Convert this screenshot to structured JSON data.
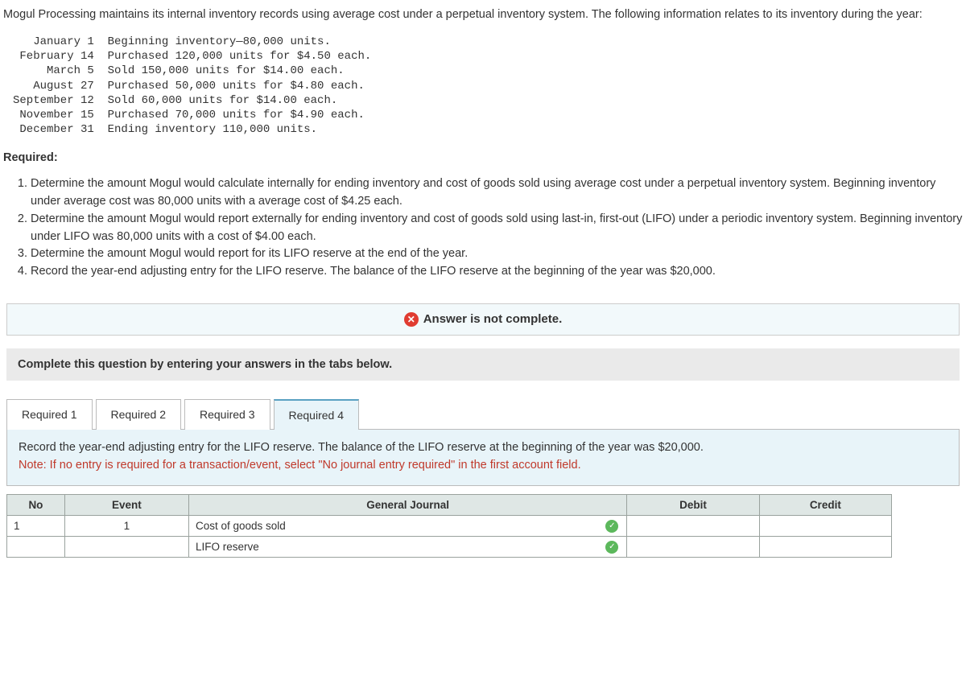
{
  "intro": "Mogul Processing maintains its internal inventory records using average cost under a perpetual inventory system. The following information relates to its inventory during the year:",
  "transactions": [
    {
      "date": "January 1",
      "desc": "Beginning inventory—80,000 units."
    },
    {
      "date": "February 14",
      "desc": "Purchased 120,000 units for $4.50 each."
    },
    {
      "date": "March 5",
      "desc": "Sold 150,000 units for $14.00 each."
    },
    {
      "date": "August 27",
      "desc": "Purchased 50,000 units for $4.80 each."
    },
    {
      "date": "September 12",
      "desc": "Sold 60,000 units for $14.00 each."
    },
    {
      "date": "November 15",
      "desc": "Purchased 70,000 units for $4.90 each."
    },
    {
      "date": "December 31",
      "desc": "Ending inventory 110,000 units."
    }
  ],
  "required_header": "Required:",
  "requirements": [
    "Determine the amount Mogul would calculate internally for ending inventory and cost of goods sold using average cost under a perpetual inventory system. Beginning inventory under average cost was 80,000 units with a average cost of $4.25 each.",
    "Determine the amount Mogul would report externally for ending inventory and cost of goods sold using last-in, first-out (LIFO) under a periodic inventory system. Beginning inventory under LIFO was 80,000 units with a cost of $4.00 each.",
    "Determine the amount Mogul would report for its LIFO reserve at the end of the year.",
    "Record the year-end adjusting entry for the LIFO reserve. The balance of the LIFO reserve at the beginning of the year was $20,000."
  ],
  "banner_text": "Answer is not complete.",
  "instruction_text": "Complete this question by entering your answers in the tabs below.",
  "tabs": {
    "t1": "Required 1",
    "t2": "Required 2",
    "t3": "Required 3",
    "t4": "Required 4"
  },
  "tab4_body_line1": "Record the year-end adjusting entry for the LIFO reserve. The balance of the LIFO reserve at the beginning of the year was $20,000.",
  "tab4_body_note": "Note: If no entry is required for a transaction/event, select \"No journal entry required\" in the first account field.",
  "journal": {
    "headers": {
      "no": "No",
      "event": "Event",
      "gj": "General Journal",
      "debit": "Debit",
      "credit": "Credit"
    },
    "rows": [
      {
        "no": "1",
        "event": "1",
        "account": "Cost of goods sold",
        "debit": "",
        "credit": "",
        "check": true
      },
      {
        "no": "",
        "event": "",
        "account": "LIFO reserve",
        "debit": "",
        "credit": "",
        "check": true
      }
    ]
  },
  "date_col_width": 12
}
